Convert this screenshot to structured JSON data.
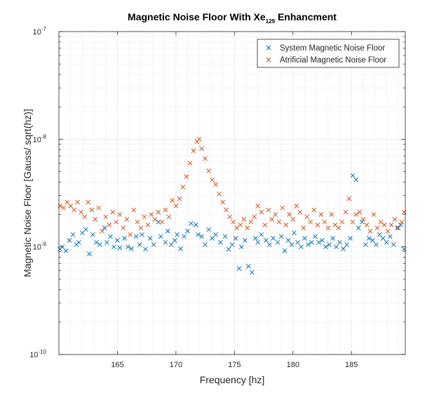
{
  "chart_data": {
    "type": "scatter",
    "title": "Magnetic Noise Floor With Xe",
    "title_subscript": "129",
    "title_suffix": " Enhancment",
    "xlabel": "Frequency [hz]",
    "ylabel": "Magnetic Noise Floor [Gauss/ sqrt(hz)]",
    "xlim": [
      160,
      189.6
    ],
    "ylim": [
      1e-10,
      1e-07
    ],
    "yscale": "log",
    "grid": true,
    "minor_grid": true,
    "legend_position": "top-right",
    "x_ticks": [
      165,
      170,
      175,
      180,
      185
    ],
    "x_tick_labels": [
      "165",
      "170",
      "175",
      "180",
      "185"
    ],
    "y_ticks": [
      {
        "value": 1e-10,
        "base": "10",
        "exp": "-10"
      },
      {
        "value": 1e-09,
        "base": "10",
        "exp": "-9"
      },
      {
        "value": 1e-08,
        "base": "10",
        "exp": "-8"
      },
      {
        "value": 1e-07,
        "base": "10",
        "exp": "-7"
      }
    ],
    "series": [
      {
        "name": "System Magnetic Noise Floor",
        "color": "#0072BD",
        "marker": "x",
        "x": [
          160.1,
          160.3,
          160.6,
          160.9,
          161.2,
          161.5,
          161.7,
          162.0,
          162.3,
          162.6,
          162.9,
          163.2,
          163.5,
          163.9,
          164.1,
          164.4,
          164.7,
          165.0,
          165.2,
          165.6,
          165.9,
          166.2,
          166.6,
          166.9,
          167.1,
          167.4,
          167.8,
          168.1,
          168.5,
          168.7,
          169.1,
          169.3,
          169.6,
          169.9,
          170.1,
          170.4,
          170.7,
          171.0,
          171.3,
          171.7,
          171.9,
          172.2,
          172.5,
          172.8,
          173.1,
          173.4,
          173.8,
          174.2,
          174.5,
          174.8,
          175.1,
          175.4,
          175.6,
          175.9,
          176.2,
          176.5,
          176.8,
          177.0,
          177.3,
          177.7,
          178.0,
          178.3,
          178.7,
          179.0,
          179.3,
          179.6,
          179.9,
          180.1,
          180.4,
          180.7,
          181.0,
          181.3,
          181.6,
          181.9,
          182.2,
          182.5,
          182.8,
          183.1,
          183.4,
          183.7,
          184.0,
          184.3,
          184.6,
          184.9,
          185.1,
          185.4,
          185.6,
          185.9,
          186.2,
          186.5,
          186.8,
          187.1,
          187.4,
          187.7,
          188.0,
          188.3,
          188.6,
          188.9,
          189.2,
          189.5
        ],
        "y": [
          9.5e-10,
          1e-09,
          9.2e-10,
          1.15e-09,
          1.3e-09,
          1.05e-09,
          1.1e-09,
          1.35e-09,
          1.45e-09,
          8.6e-10,
          1.3e-09,
          1.1e-09,
          1.05e-09,
          1.5e-09,
          1.1e-09,
          1.25e-09,
          1e-09,
          1.15e-09,
          9.8e-10,
          1.2e-09,
          1e-09,
          9.6e-10,
          1.25e-09,
          1.05e-09,
          1.3e-09,
          9.5e-10,
          1.2e-09,
          1.05e-09,
          1.7e-09,
          1.25e-09,
          1.1e-09,
          1.4e-09,
          1.05e-09,
          1.15e-09,
          1.3e-09,
          9.6e-10,
          1.25e-09,
          1.4e-09,
          1.65e-09,
          1.6e-09,
          1.3e-09,
          1.25e-09,
          1.05e-09,
          1.45e-09,
          1.2e-09,
          1.3e-09,
          1.1e-09,
          1.25e-09,
          9.5e-10,
          1.05e-09,
          1.2e-09,
          6.3e-10,
          1e-09,
          1.15e-09,
          6.6e-10,
          5.8e-10,
          1.2e-09,
          1.1e-09,
          1.3e-09,
          1.15e-09,
          1.05e-09,
          1.2e-09,
          1.1e-09,
          1.25e-09,
          9.2e-10,
          1.15e-09,
          1.05e-09,
          1.35e-09,
          1.1e-09,
          1e-09,
          1.2e-09,
          1.05e-09,
          1.1e-09,
          1.25e-09,
          1.1e-09,
          1.15e-09,
          1e-09,
          1.05e-09,
          1.2e-09,
          1e-09,
          1.1e-09,
          9.6e-10,
          1.05e-09,
          1.2e-09,
          4.6e-09,
          4.2e-09,
          1.5e-09,
          1.7e-09,
          1.05e-09,
          1.2e-09,
          1.15e-09,
          1.05e-09,
          1.3e-09,
          1.2e-09,
          1.1e-09,
          1.25e-09,
          1.05e-09,
          1.5e-09,
          1.6e-09,
          9.5e-10
        ]
      },
      {
        "name": "Atrificial Magnetic Noise Floor",
        "color": "#D95319",
        "marker": "x",
        "x": [
          160.1,
          160.4,
          160.7,
          161.0,
          161.3,
          161.6,
          161.9,
          162.2,
          162.5,
          162.8,
          163.1,
          163.4,
          163.7,
          164.0,
          164.3,
          164.6,
          164.9,
          165.2,
          165.5,
          165.8,
          166.1,
          166.4,
          166.7,
          167.0,
          167.3,
          167.6,
          167.9,
          168.2,
          168.5,
          168.8,
          169.1,
          169.4,
          169.7,
          170.0,
          170.3,
          170.6,
          170.9,
          171.2,
          171.5,
          171.8,
          172.0,
          172.2,
          172.5,
          172.8,
          173.1,
          173.4,
          173.7,
          174.0,
          174.3,
          174.6,
          174.9,
          175.2,
          175.5,
          175.8,
          176.1,
          176.4,
          176.7,
          177.0,
          177.3,
          177.6,
          177.9,
          178.2,
          178.5,
          178.8,
          179.1,
          179.4,
          179.7,
          180.0,
          180.3,
          180.6,
          180.9,
          181.2,
          181.5,
          181.8,
          182.1,
          182.4,
          182.7,
          183.0,
          183.3,
          183.6,
          183.9,
          184.2,
          184.5,
          184.8,
          185.1,
          185.4,
          185.7,
          186.0,
          186.3,
          186.6,
          186.9,
          187.2,
          187.5,
          187.8,
          188.1,
          188.4,
          188.7,
          189.0,
          189.3,
          189.5
        ],
        "y": [
          2.4e-09,
          2.3e-09,
          2.6e-09,
          2.4e-09,
          2.2e-09,
          2.6e-09,
          2.1e-09,
          1.9e-09,
          2.6e-09,
          2.2e-09,
          1.8e-09,
          2.3e-09,
          1.4e-09,
          1.9e-09,
          1.6e-09,
          2.1e-09,
          1.7e-09,
          2e-09,
          1.5e-09,
          1.8e-09,
          1.3e-09,
          2.2e-09,
          1.7e-09,
          1.5e-09,
          1.9e-09,
          1.6e-09,
          2e-09,
          1.8e-09,
          2.1e-09,
          1.7e-09,
          2.2e-09,
          1.9e-09,
          2.7e-09,
          2.4e-09,
          2.8e-09,
          3.6e-09,
          4.5e-09,
          6e-09,
          7.8e-09,
          9.5e-09,
          1e-08,
          8.2e-09,
          6.6e-09,
          5.1e-09,
          4.2e-09,
          3.8e-09,
          3.1e-09,
          2.6e-09,
          2.2e-09,
          1.9e-09,
          1.7e-09,
          1.5e-09,
          1.6e-09,
          1.8e-09,
          1.5e-09,
          1.7e-09,
          1.9e-09,
          2.4e-09,
          2.1e-09,
          1.6e-09,
          2.2e-09,
          1.8e-09,
          2e-09,
          1.7e-09,
          2.3e-09,
          1.6e-09,
          2e-09,
          1.8e-09,
          2.4e-09,
          2.1e-09,
          1.5e-09,
          1.9e-09,
          1.7e-09,
          2.2e-09,
          1.6e-09,
          2e-09,
          1.7e-09,
          1.5e-09,
          2e-09,
          1.6e-09,
          1.5e-09,
          1.7e-09,
          2.1e-09,
          2.8e-09,
          1.7e-09,
          2e-09,
          2.1e-09,
          1.8e-09,
          1.6e-09,
          1.4e-09,
          2e-09,
          1.5e-09,
          1.7e-09,
          1.6e-09,
          1.4e-09,
          1.6e-09,
          1.8e-09,
          1.5e-09,
          1.7e-09,
          2.1e-09
        ]
      }
    ]
  }
}
